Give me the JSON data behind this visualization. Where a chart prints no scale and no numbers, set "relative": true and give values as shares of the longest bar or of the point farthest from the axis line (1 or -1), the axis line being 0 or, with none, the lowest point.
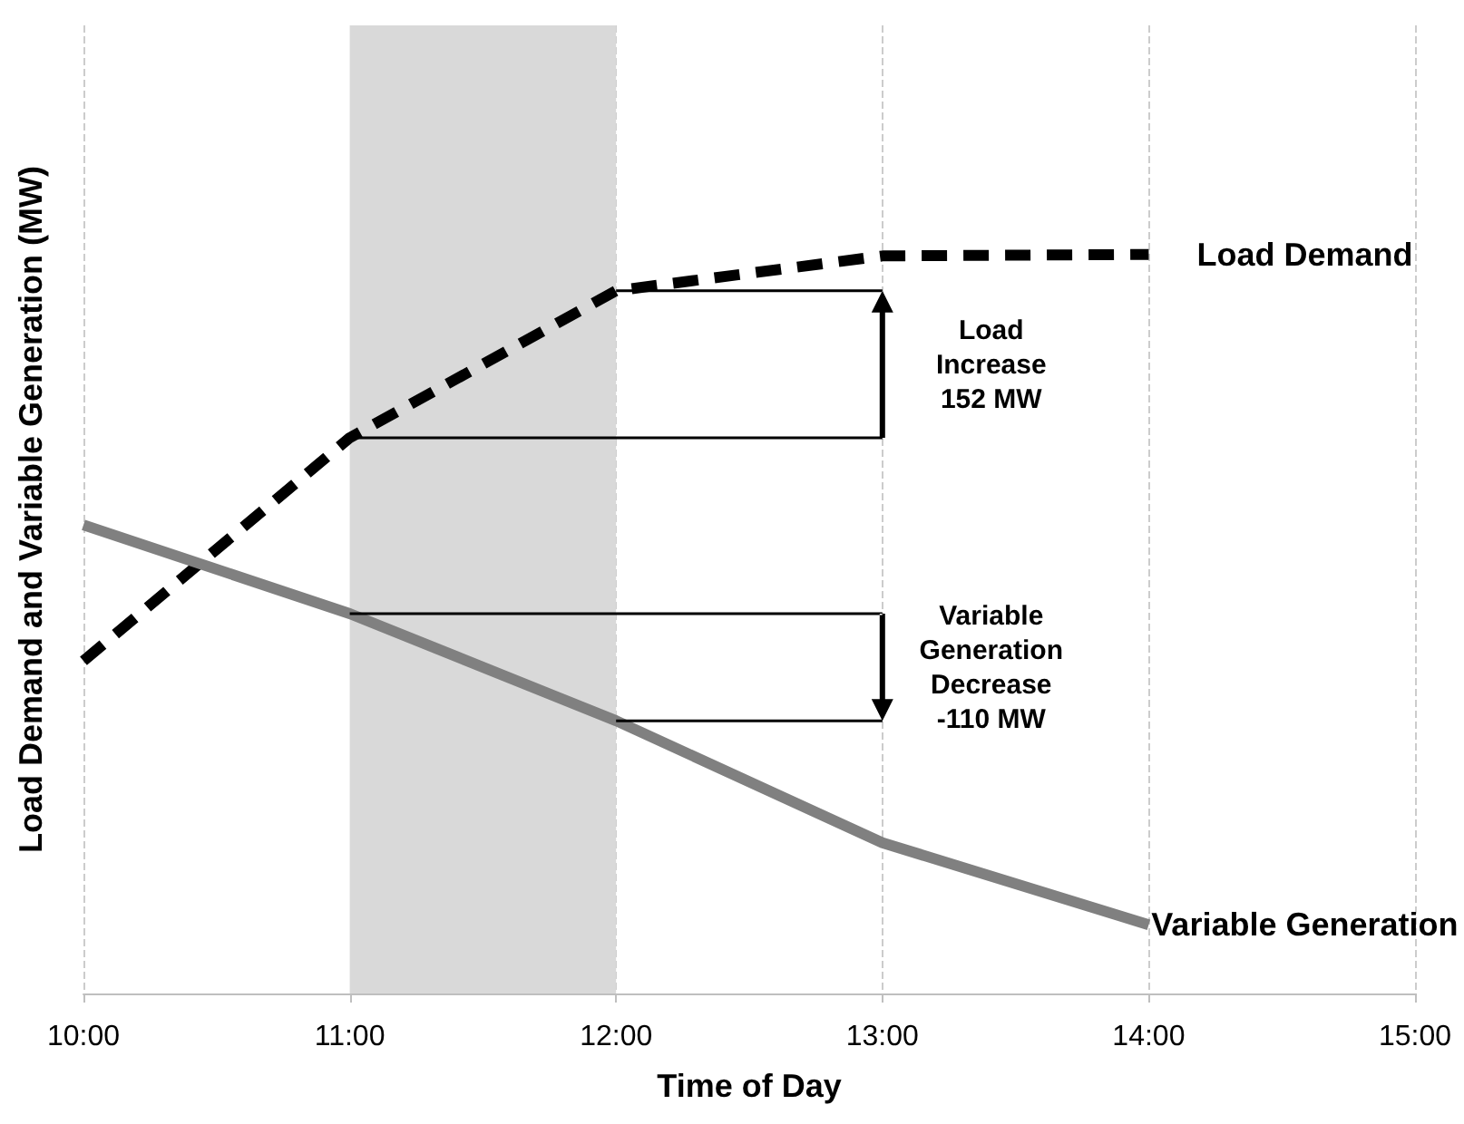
{
  "chart_data": {
    "type": "line",
    "relative": true,
    "xlabel": "Time of Day",
    "ylabel": "Load Demand and Variable Generation (MW)",
    "x": [
      10,
      11,
      12,
      13,
      14
    ],
    "xlim": [
      10,
      15
    ],
    "xticks": [
      {
        "value": 10,
        "label": "10:00"
      },
      {
        "value": 11,
        "label": "11:00"
      },
      {
        "value": 12,
        "label": "12:00"
      },
      {
        "value": 13,
        "label": "13:00"
      },
      {
        "value": 14,
        "label": "14:00"
      },
      {
        "value": 15,
        "label": "15:00"
      }
    ],
    "series": [
      {
        "name": "Load Demand",
        "color": "#000000",
        "line_style": "dashed",
        "values": [
          0.45,
          0.752,
          0.951,
          0.998,
          1.0
        ]
      },
      {
        "name": "Variable Generation",
        "color": "#808080",
        "line_style": "solid",
        "values": [
          0.634,
          0.514,
          0.369,
          0.204,
          0.093
        ]
      }
    ],
    "bands": [
      {
        "axis": "x",
        "from": 11,
        "to": 12,
        "color": "#d9d9d9"
      }
    ],
    "annotations": [
      "Load\nIncrease\n152 MW",
      "Variable\nGeneration\nDecrease\n-110 MW"
    ],
    "grid": "x",
    "marker": "none"
  }
}
